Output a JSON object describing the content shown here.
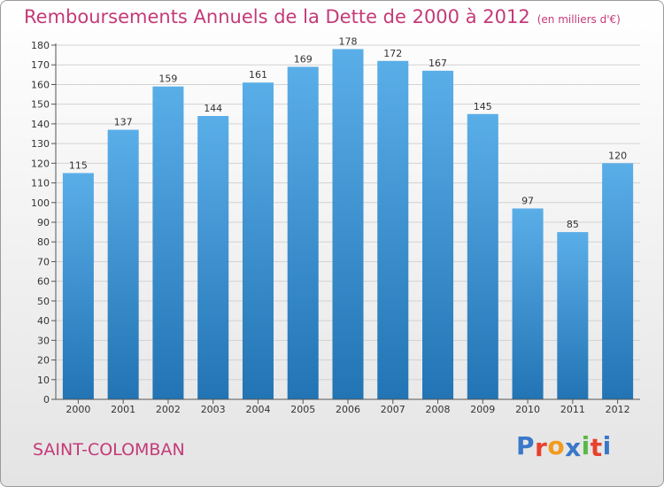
{
  "chart_data": {
    "type": "bar",
    "title": "Remboursements Annuels de la Dette de 2000 à 2012",
    "subtitle": "(en milliers d'€)",
    "categories": [
      "2000",
      "2001",
      "2002",
      "2003",
      "2004",
      "2005",
      "2006",
      "2007",
      "2008",
      "2009",
      "2010",
      "2011",
      "2012"
    ],
    "values": [
      115,
      137,
      159,
      144,
      161,
      169,
      178,
      172,
      167,
      145,
      97,
      85,
      120
    ],
    "ylim": [
      0,
      180
    ],
    "yticks": [
      0,
      10,
      20,
      30,
      40,
      50,
      60,
      70,
      80,
      90,
      100,
      110,
      120,
      130,
      140,
      150,
      160,
      170,
      180
    ],
    "grid": true,
    "legend": "none"
  },
  "commune": "SAINT-COLOMBAN",
  "logo": {
    "text": "Proxiti",
    "letter_colors": [
      "#3a78c8",
      "#e8412c",
      "#f39a1e",
      "#3a78c8",
      "#59b947",
      "#e8412c",
      "#3a78c8"
    ]
  },
  "colors": {
    "title": "#c43a78",
    "bar_top": "#5aaee8",
    "bar_bottom": "#2274b4",
    "grid": "#d2d2d2",
    "axis": "#555555"
  }
}
